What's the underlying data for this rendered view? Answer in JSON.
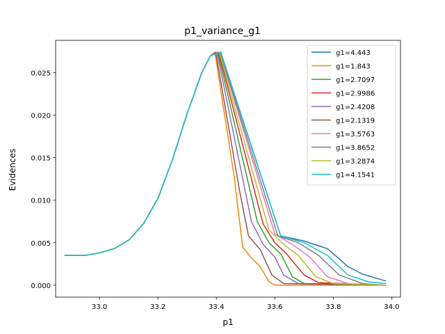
{
  "chart_data": {
    "type": "line",
    "title": "p1_variance_g1",
    "xlabel": "p1",
    "ylabel": "Evidences",
    "xlim": [
      32.85,
      34.03
    ],
    "ylim": [
      -0.0014,
      0.0288
    ],
    "xticks": [
      33.0,
      33.2,
      33.4,
      33.6,
      33.8,
      34.0
    ],
    "xtick_labels": [
      "33.0",
      "33.2",
      "33.4",
      "33.6",
      "33.8",
      "34.0"
    ],
    "yticks": [
      0.0,
      0.005,
      0.01,
      0.015,
      0.02,
      0.025
    ],
    "ytick_labels": [
      "0.000",
      "0.005",
      "0.010",
      "0.015",
      "0.020",
      "0.025"
    ],
    "grid": false,
    "legend_position": "top-right",
    "series": [
      {
        "name": "g1=4.443",
        "color": "#1f77b4",
        "peak_x": 33.415,
        "tail": [
          [
            33.62,
            0.0058
          ],
          [
            33.7,
            0.0052
          ],
          [
            33.78,
            0.0043
          ],
          [
            33.85,
            0.0022
          ],
          [
            33.9,
            0.0013
          ],
          [
            33.98,
            0.0005
          ]
        ]
      },
      {
        "name": "g1=1.843",
        "color": "#ff7f0e",
        "peak_x": 33.395,
        "tail": [
          [
            33.46,
            0.013
          ],
          [
            33.49,
            0.0045
          ],
          [
            33.52,
            0.0032
          ],
          [
            33.55,
            0.0022
          ],
          [
            33.58,
            0.0004
          ],
          [
            33.6,
            0.0
          ],
          [
            33.98,
            0.0
          ]
        ]
      },
      {
        "name": "g1=2.7097",
        "color": "#2ca02c",
        "peak_x": 33.405,
        "tail": [
          [
            33.54,
            0.0075
          ],
          [
            33.58,
            0.005
          ],
          [
            33.62,
            0.0037
          ],
          [
            33.66,
            0.001
          ],
          [
            33.7,
            0.0002
          ],
          [
            33.98,
            0.0
          ]
        ]
      },
      {
        "name": "g1=2.9986",
        "color": "#d62728",
        "peak_x": 33.408,
        "tail": [
          [
            33.56,
            0.0072
          ],
          [
            33.6,
            0.005
          ],
          [
            33.64,
            0.0037
          ],
          [
            33.7,
            0.0012
          ],
          [
            33.75,
            0.0003
          ],
          [
            33.98,
            0.0
          ]
        ]
      },
      {
        "name": "g1=2.4208",
        "color": "#9467bd",
        "peak_x": 33.402,
        "tail": [
          [
            33.52,
            0.0075
          ],
          [
            33.56,
            0.0048
          ],
          [
            33.6,
            0.0033
          ],
          [
            33.63,
            0.0012
          ],
          [
            33.68,
            0.0002
          ],
          [
            33.98,
            0.0
          ]
        ]
      },
      {
        "name": "g1=2.1319",
        "color": "#8c564b",
        "peak_x": 33.398,
        "tail": [
          [
            33.48,
            0.011
          ],
          [
            33.51,
            0.0058
          ],
          [
            33.55,
            0.0042
          ],
          [
            33.59,
            0.0012
          ],
          [
            33.63,
            0.0002
          ],
          [
            33.98,
            0.0
          ]
        ]
      },
      {
        "name": "g1=3.5763",
        "color": "#e377c2",
        "peak_x": 33.412,
        "tail": [
          [
            33.6,
            0.006
          ],
          [
            33.66,
            0.0048
          ],
          [
            33.72,
            0.0033
          ],
          [
            33.78,
            0.001
          ],
          [
            33.85,
            0.0002
          ],
          [
            33.98,
            0.0
          ]
        ]
      },
      {
        "name": "g1=3.8652",
        "color": "#7f7f7f",
        "peak_x": 33.413,
        "tail": [
          [
            33.61,
            0.0058
          ],
          [
            33.68,
            0.005
          ],
          [
            33.75,
            0.0035
          ],
          [
            33.82,
            0.0012
          ],
          [
            33.9,
            0.0002
          ],
          [
            33.98,
            0.0
          ]
        ]
      },
      {
        "name": "g1=3.2874",
        "color": "#bcbd22",
        "peak_x": 33.41,
        "tail": [
          [
            33.58,
            0.0065
          ],
          [
            33.63,
            0.0048
          ],
          [
            33.68,
            0.0035
          ],
          [
            33.74,
            0.001
          ],
          [
            33.8,
            0.0002
          ],
          [
            33.98,
            0.0
          ]
        ]
      },
      {
        "name": "g1=4.1541",
        "color": "#17becf",
        "peak_x": 33.414,
        "tail": [
          [
            33.62,
            0.0058
          ],
          [
            33.7,
            0.005
          ],
          [
            33.78,
            0.0035
          ],
          [
            33.85,
            0.0012
          ],
          [
            33.92,
            0.0004
          ],
          [
            33.98,
            0.0002
          ]
        ]
      }
    ],
    "shared_left": [
      [
        32.88,
        0.0035
      ],
      [
        32.95,
        0.0035
      ],
      [
        33.0,
        0.0038
      ],
      [
        33.05,
        0.0043
      ],
      [
        33.1,
        0.0053
      ],
      [
        33.15,
        0.0072
      ],
      [
        33.2,
        0.0102
      ],
      [
        33.25,
        0.0148
      ],
      [
        33.3,
        0.0202
      ],
      [
        33.35,
        0.025
      ],
      [
        33.38,
        0.027
      ]
    ],
    "peak_y": 0.0274
  }
}
